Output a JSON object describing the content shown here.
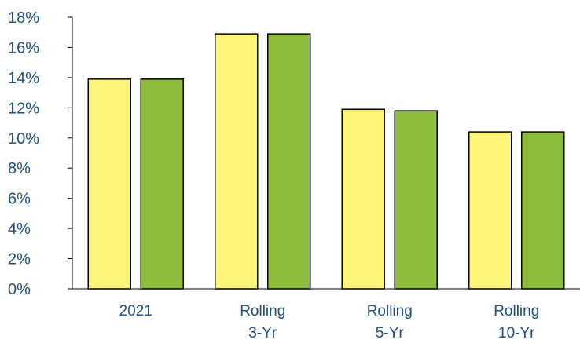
{
  "chart_data": {
    "type": "bar",
    "categories": [
      [
        "2021"
      ],
      [
        "Rolling",
        "3-Yr"
      ],
      [
        "Rolling",
        "5-Yr"
      ],
      [
        "Rolling",
        "10-Yr"
      ]
    ],
    "series": [
      {
        "values": [
          13.9,
          16.9,
          11.9,
          10.4
        ],
        "color": "#FFF47A"
      },
      {
        "values": [
          13.9,
          16.9,
          11.8,
          10.4
        ],
        "color": "#8DBB3C"
      }
    ],
    "ylim": [
      0,
      18
    ],
    "ytick_step": 2,
    "ytick_labels": [
      "0%",
      "2%",
      "4%",
      "6%",
      "8%",
      "10%",
      "12%",
      "14%",
      "16%",
      "18%"
    ],
    "title": "",
    "xlabel": "",
    "ylabel": "",
    "grid": false,
    "legend": "none",
    "label_color": "#1F4E79",
    "bar_outline_color": "#000000"
  }
}
